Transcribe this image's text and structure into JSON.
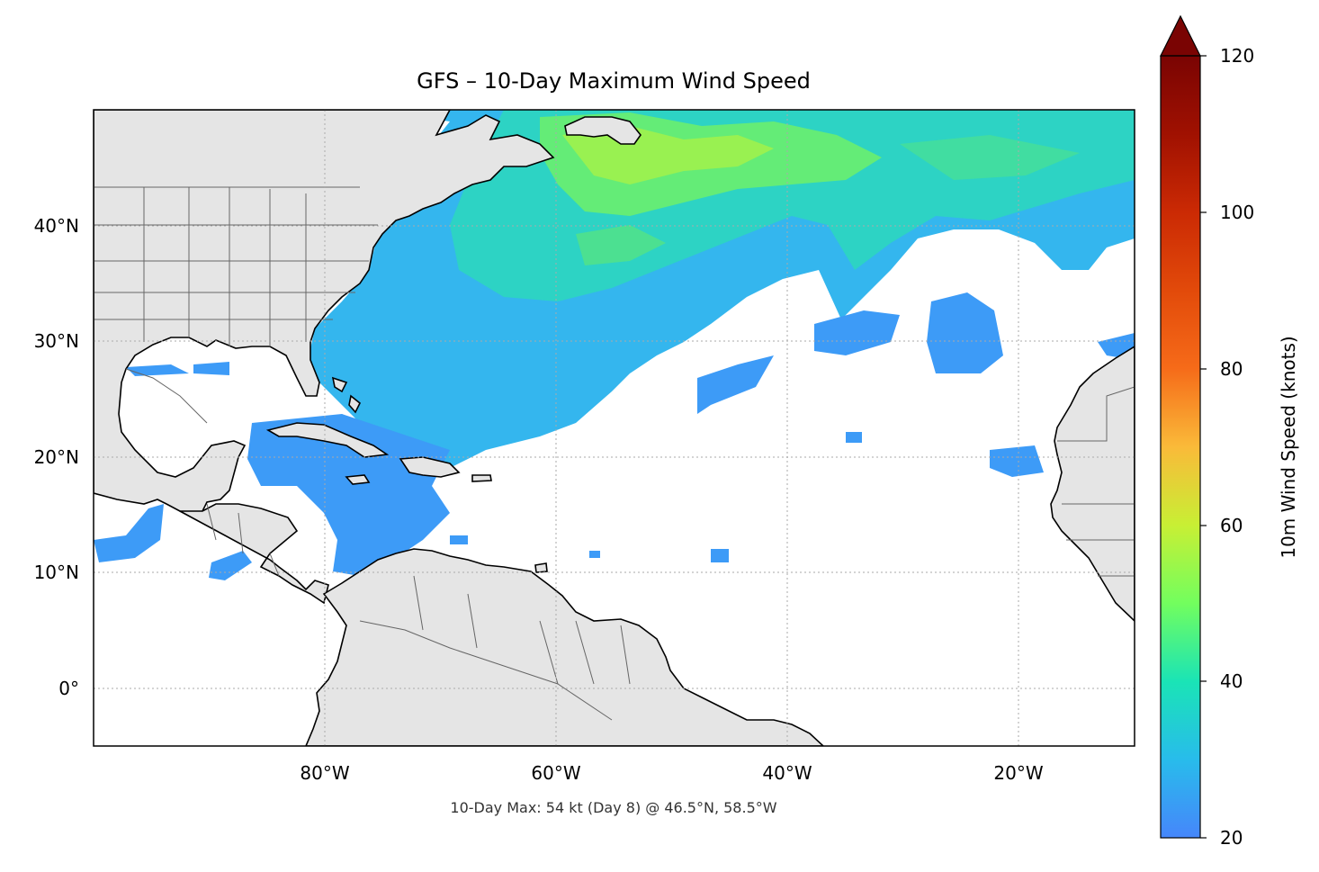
{
  "map": {
    "title": "GFS – 10-Day Maximum Wind Speed",
    "annotation": "10-Day Max: 54 kt (Day 8) @ 46.5°N, 58.5°W",
    "projection": "PlateCarree",
    "extent": {
      "lon": [
        -100,
        -10
      ],
      "lat": [
        -5,
        50
      ]
    },
    "lon_ticks": [
      {
        "value": -80,
        "label": "80°W"
      },
      {
        "value": -60,
        "label": "60°W"
      },
      {
        "value": -40,
        "label": "40°W"
      },
      {
        "value": -20,
        "label": "20°W"
      }
    ],
    "lat_ticks": [
      {
        "value": 40,
        "label": "40°N"
      },
      {
        "value": 30,
        "label": "30°N"
      },
      {
        "value": 20,
        "label": "20°N"
      },
      {
        "value": 10,
        "label": "10°N"
      },
      {
        "value": 0,
        "label": "0°"
      }
    ],
    "land_color": "#e5e5e5",
    "ocean_color": "#ffffff",
    "gridlines": true
  },
  "colorbar": {
    "label": "10m Wind Speed (knots)",
    "min": 20,
    "max": 120,
    "extend": "max",
    "ticks": [
      {
        "value": 20,
        "label": "20"
      },
      {
        "value": 40,
        "label": "40"
      },
      {
        "value": 60,
        "label": "60"
      },
      {
        "value": 80,
        "label": "80"
      },
      {
        "value": 100,
        "label": "100"
      },
      {
        "value": 120,
        "label": "120"
      }
    ],
    "colormap": "turbo",
    "over_color": "#7a0403"
  },
  "wind_field": {
    "max_wind_kt": 54,
    "max_day": 8,
    "max_location": {
      "lat": 46.5,
      "lon": -58.5
    }
  }
}
